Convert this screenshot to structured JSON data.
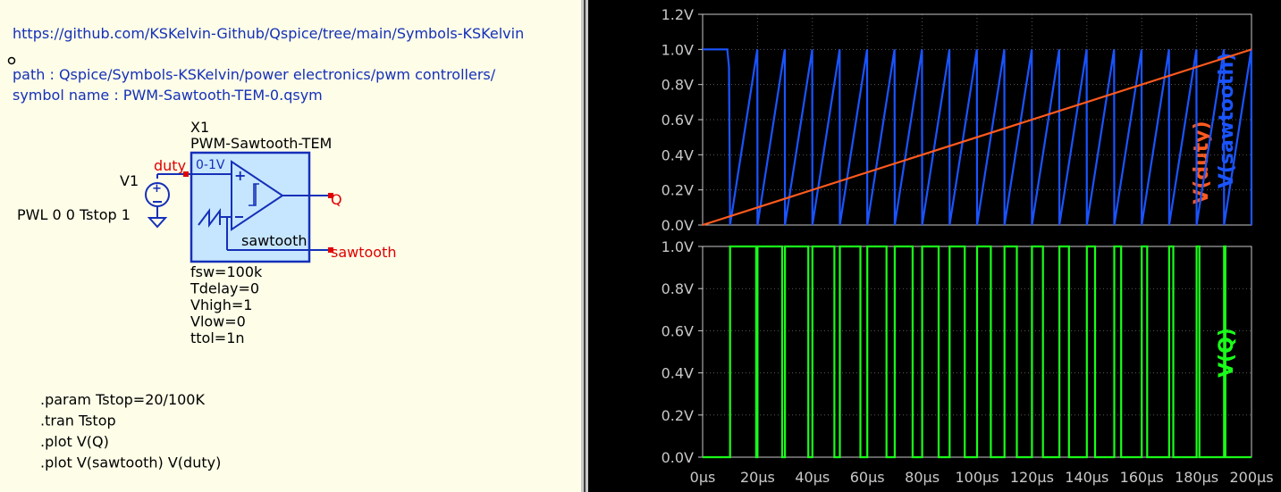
{
  "schematic": {
    "url_text": "https://github.com/KSKelvin-Github/Qspice/tree/main/Symbols-KSKelvin",
    "path_text": "path : Qspice/Symbols-KSKelvin/power electronics/pwm controllers/",
    "symbol_text": "symbol name : PWM-Sawtooth-TEM-0.qsym",
    "source": {
      "ref": "V1",
      "value": "PWL 0 0 Tstop 1"
    },
    "component": {
      "ref": "X1",
      "name": "PWM-Sawtooth-TEM",
      "range_label": "0-1V",
      "internal_net": "sawtooth",
      "params": [
        "fsw=100k",
        "Tdelay=0",
        "Vhigh=1",
        "Vlow=0",
        "ttol=1n"
      ]
    },
    "nets": {
      "duty": "duty",
      "q": "Q",
      "sawtooth": "sawtooth"
    },
    "directives": [
      ".param Tstop=20/100K",
      ".tran Tstop",
      ".plot V(Q)",
      ".plot V(sawtooth) V(duty)"
    ],
    "colors": {
      "background": "#fdfde8",
      "text": "#000000",
      "link": "#1530b8",
      "net_label": "#e00000",
      "component_fill": "#c6e6ff",
      "wire": "#1530b8"
    }
  },
  "chart_data": [
    {
      "type": "line",
      "title": "",
      "xlabel": "",
      "ylabel": "",
      "legend_labels": [
        "V(duty)",
        "V(sawtooth)"
      ],
      "xlim": [
        0,
        200
      ],
      "ylim": [
        0,
        1.2
      ],
      "x_ticks": [
        "0µs",
        "20µs",
        "40µs",
        "60µs",
        "80µs",
        "100µs",
        "120µs",
        "140µs",
        "160µs",
        "180µs",
        "200µs"
      ],
      "y_ticks": [
        "0.0V",
        "0.2V",
        "0.4V",
        "0.6V",
        "0.8V",
        "1.0V",
        "1.2V"
      ],
      "grid": true,
      "series": [
        {
          "name": "V(duty)",
          "color": "#ff5a1e",
          "x": [
            0,
            200
          ],
          "y": [
            0,
            1
          ]
        },
        {
          "name": "V(sawtooth)",
          "color": "#1a54ff",
          "period": 10,
          "delay": 10,
          "initial": 1.0,
          "peak": 1.0
        }
      ]
    },
    {
      "type": "line",
      "title": "",
      "xlabel": "",
      "ylabel": "",
      "legend_labels": [
        "V(Q)"
      ],
      "xlim": [
        0,
        200
      ],
      "ylim": [
        0,
        1
      ],
      "x_ticks": [
        "0µs",
        "20µs",
        "40µs",
        "60µs",
        "80µs",
        "100µs",
        "120µs",
        "140µs",
        "160µs",
        "180µs",
        "200µs"
      ],
      "y_ticks": [
        "0.0V",
        "0.2V",
        "0.4V",
        "0.6V",
        "0.8V",
        "1.0V"
      ],
      "grid": true,
      "series": [
        {
          "name": "V(Q)",
          "color": "#19ff19",
          "period": 10,
          "delay": 10,
          "high": 1,
          "low": 0
        }
      ]
    }
  ]
}
